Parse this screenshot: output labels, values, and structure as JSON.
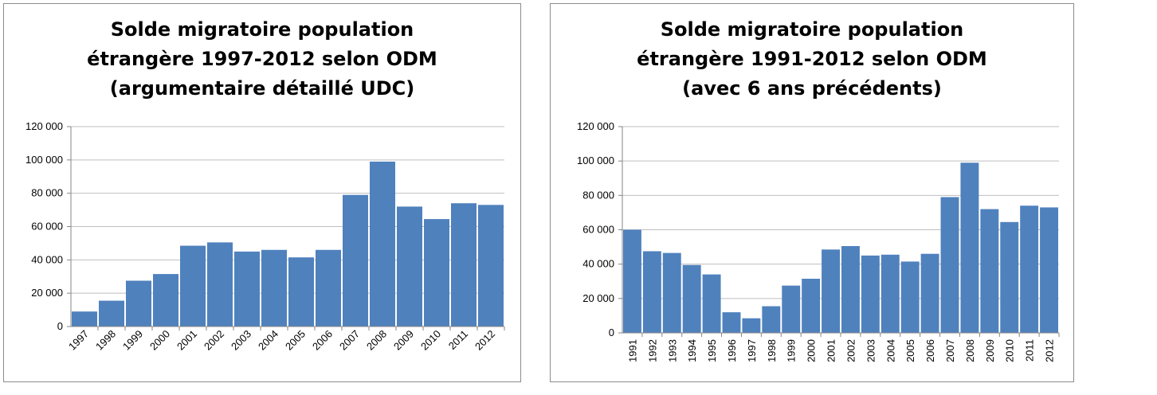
{
  "charts": [
    {
      "title_lines": [
        "Solde migratoire population",
        "étrangère 1997-2012 selon ODM",
        "(argumentaire détaillé UDC)"
      ]
    },
    {
      "title_lines": [
        "Solde migratoire population",
        "étrangère 1991-2012 selon ODM",
        "(avec 6 ans précédents)"
      ]
    }
  ],
  "chart_data": [
    {
      "type": "bar",
      "title": "Solde migratoire population étrangère 1997-2012 selon ODM (argumentaire détaillé UDC)",
      "categories": [
        "1997",
        "1998",
        "1999",
        "2000",
        "2001",
        "2002",
        "2003",
        "2004",
        "2005",
        "2006",
        "2007",
        "2008",
        "2009",
        "2010",
        "2011",
        "2012"
      ],
      "values": [
        9000,
        15500,
        27500,
        31500,
        48500,
        50500,
        45000,
        46000,
        41500,
        46000,
        79000,
        99000,
        72000,
        64500,
        74000,
        73000
      ],
      "yticks": [
        "0",
        "20 000",
        "40 000",
        "60 000",
        "80 000",
        "100 000",
        "120 000"
      ],
      "ylim": [
        0,
        120000
      ],
      "xlabel": "",
      "ylabel": "",
      "bar_color": "#4f81bd",
      "grid": true,
      "x_label_rotation": "diagonal"
    },
    {
      "type": "bar",
      "title": "Solde migratoire population étrangère 1991-2012 selon ODM (avec 6 ans précédents)",
      "categories": [
        "1991",
        "1992",
        "1993",
        "1994",
        "1995",
        "1996",
        "1997",
        "1998",
        "1999",
        "2000",
        "2001",
        "2002",
        "2003",
        "2004",
        "2005",
        "2006",
        "2007",
        "2008",
        "2009",
        "2010",
        "2011",
        "2012"
      ],
      "values": [
        60000,
        47500,
        46500,
        39500,
        34000,
        12000,
        8500,
        15500,
        27500,
        31500,
        48500,
        50500,
        45000,
        45500,
        41500,
        46000,
        79000,
        99000,
        72000,
        64500,
        74000,
        73000
      ],
      "yticks": [
        "0",
        "20 000",
        "40 000",
        "60 000",
        "80 000",
        "100 000",
        "120 000"
      ],
      "ylim": [
        0,
        120000
      ],
      "xlabel": "",
      "ylabel": "",
      "bar_color": "#4f81bd",
      "grid": true,
      "x_label_rotation": "vertical"
    }
  ]
}
